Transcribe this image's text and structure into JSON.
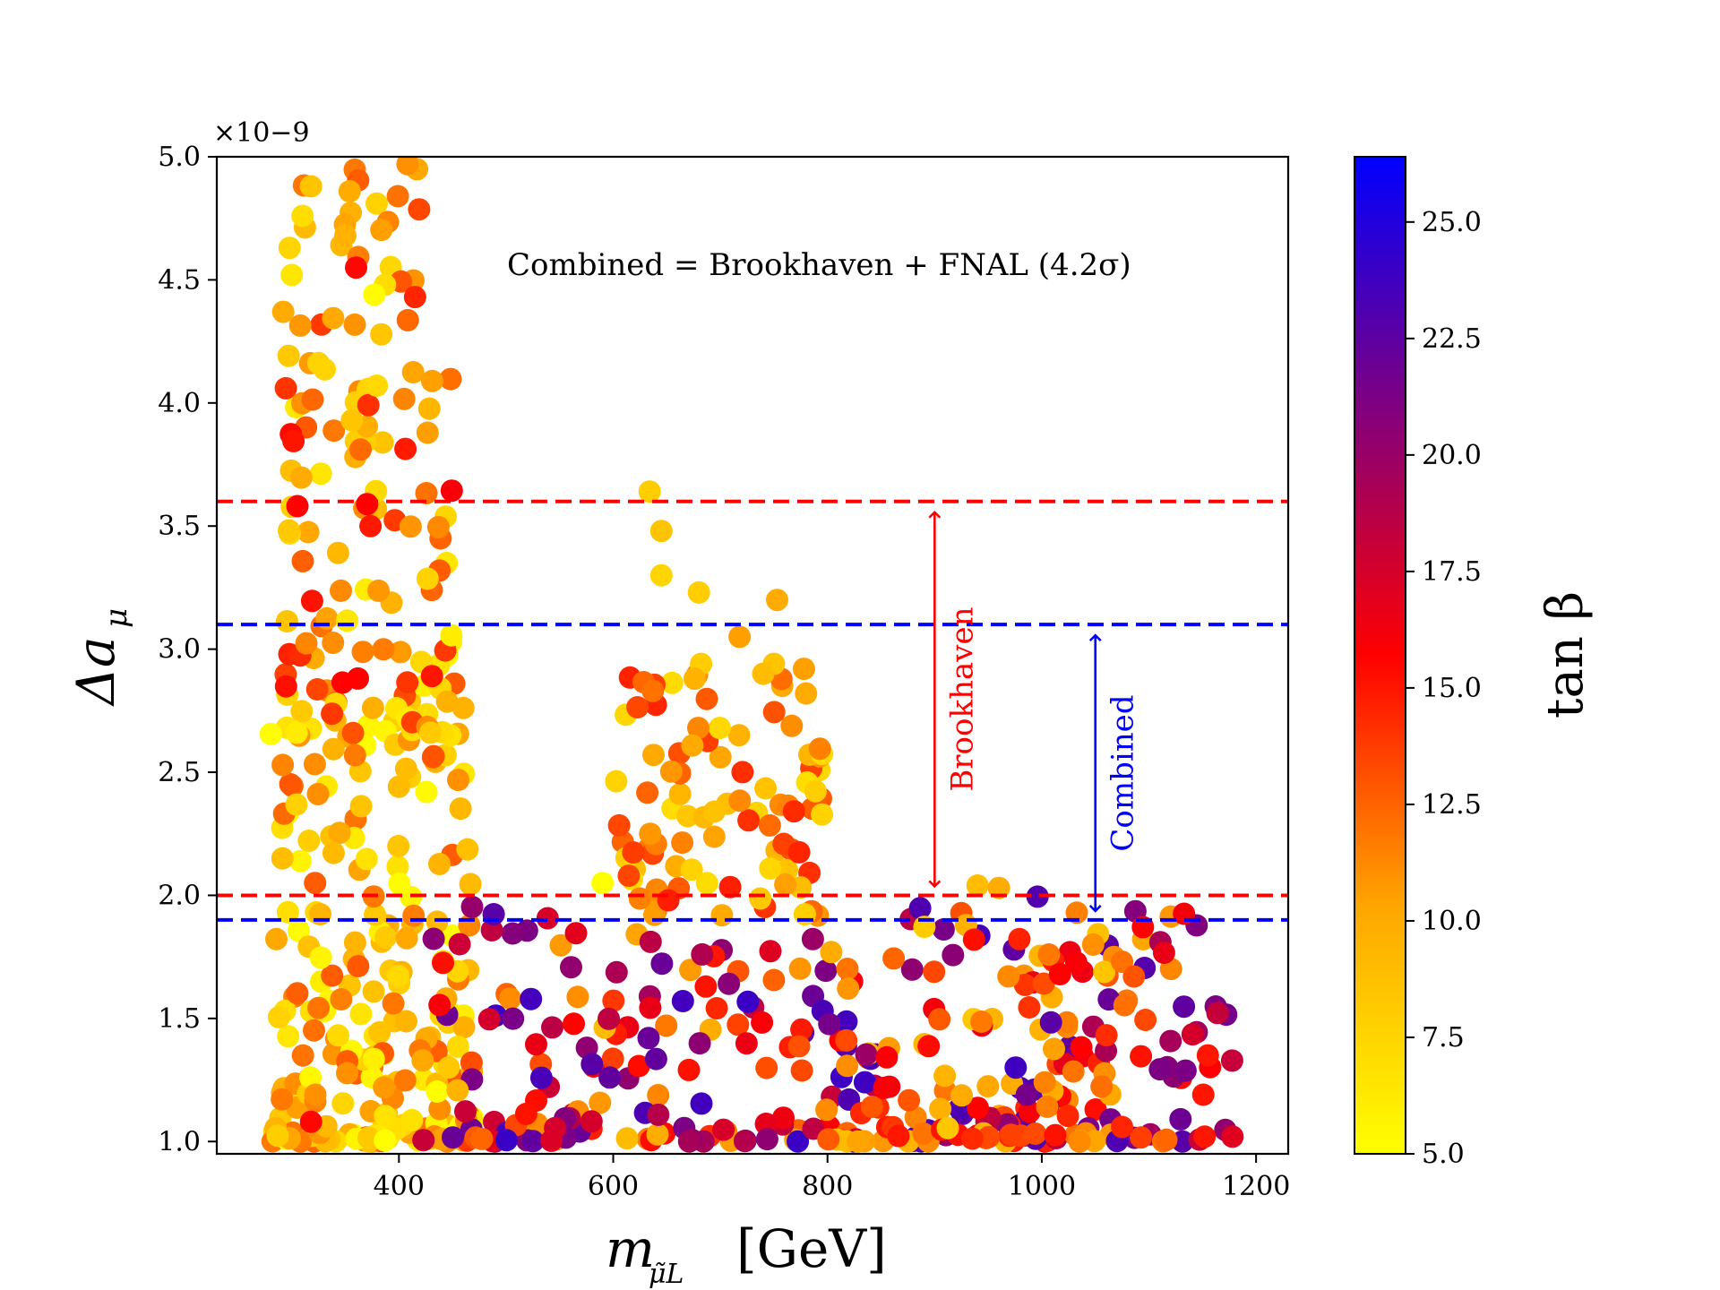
{
  "chart_data": {
    "type": "scatter",
    "title": "",
    "xlabel": {
      "main": "m",
      "sub": "μ̃L",
      "unit": "[GeV]"
    },
    "ylabel": {
      "main": "Δa",
      "sub": "μ"
    },
    "offset_label": "×10−9",
    "xlim": [
      230,
      1230
    ],
    "ylim": [
      0.95,
      5.0
    ],
    "x_ticks": [
      400,
      600,
      800,
      1000,
      1200
    ],
    "x_tick_labels": [
      "400",
      "600",
      "800",
      "1000",
      "1200"
    ],
    "y_ticks": [
      1.0,
      1.5,
      2.0,
      2.5,
      3.0,
      3.5,
      4.0,
      4.5,
      5.0
    ],
    "y_tick_labels": [
      "1.0",
      "1.5",
      "2.0",
      "2.5",
      "3.0",
      "3.5",
      "4.0",
      "4.5",
      "5.0"
    ],
    "colorbar": {
      "label": "tan β",
      "range": [
        5.0,
        26.4
      ],
      "ticks": [
        5.0,
        7.5,
        10.0,
        12.5,
        15.0,
        17.5,
        20.0,
        22.5,
        25.0
      ],
      "tick_labels": [
        "5.0",
        "7.5",
        "10.0",
        "12.5",
        "15.0",
        "17.5",
        "20.0",
        "22.5",
        "25.0"
      ],
      "colormap": [
        "#ffff00",
        "#ffa500",
        "#ff0000",
        "#800080",
        "#0000ff"
      ]
    },
    "reference_lines": [
      {
        "name": "brookhaven-upper",
        "y": 3.6,
        "color": "#ff0000"
      },
      {
        "name": "brookhaven-lower",
        "y": 2.0,
        "color": "#ff0000"
      },
      {
        "name": "combined-upper",
        "y": 3.1,
        "color": "#0000ff"
      },
      {
        "name": "combined-lower",
        "y": 1.9,
        "color": "#0000ff"
      }
    ],
    "range_arrows": [
      {
        "name": "brookhaven",
        "label": "Brookhaven",
        "x": 900,
        "y_low": 2.0,
        "y_high": 3.6,
        "color": "#ff0000"
      },
      {
        "name": "combined",
        "label": "Combined",
        "x": 1050,
        "y_low": 1.9,
        "y_high": 3.1,
        "color": "#0000ff"
      }
    ],
    "annotation": "Combined = Brookhaven + FNAL (4.2σ)",
    "point_seed": 20240611,
    "point_clusters": [
      {
        "n": 240,
        "x": [
          280,
          470
        ],
        "y": [
          1.0,
          3.0
        ],
        "tb": [
          5,
          13
        ],
        "shape": "decay"
      },
      {
        "n": 110,
        "x": [
          290,
          450
        ],
        "y": [
          2.5,
          4.2
        ],
        "tb": [
          6,
          16
        ],
        "shape": "uniform"
      },
      {
        "n": 22,
        "x": [
          300,
          420
        ],
        "y": [
          4.2,
          5.0
        ],
        "tb": [
          7,
          14
        ],
        "shape": "uniform"
      },
      {
        "n": 300,
        "x": [
          420,
          1180
        ],
        "y": [
          1.0,
          2.0
        ],
        "tb": [
          9,
          24
        ],
        "shape": "decay"
      },
      {
        "n": 90,
        "x": [
          600,
          800
        ],
        "y": [
          1.9,
          2.9
        ],
        "tb": [
          7,
          15
        ],
        "shape": "uniform"
      },
      {
        "n": 60,
        "x": [
          800,
          1100
        ],
        "y": [
          1.0,
          1.9
        ],
        "tb": [
          8,
          16
        ],
        "shape": "decay"
      }
    ],
    "points": [
      {
        "x": 408,
        "y": 4.97,
        "tb": 11.0
      },
      {
        "x": 318,
        "y": 4.88,
        "tb": 8.5
      },
      {
        "x": 354,
        "y": 4.86,
        "tb": 10.0
      },
      {
        "x": 399,
        "y": 4.84,
        "tb": 12.0
      },
      {
        "x": 310,
        "y": 4.76,
        "tb": 7.0
      },
      {
        "x": 350,
        "y": 4.68,
        "tb": 9.5
      },
      {
        "x": 298,
        "y": 4.63,
        "tb": 7.5
      },
      {
        "x": 360,
        "y": 4.55,
        "tb": 15.5
      },
      {
        "x": 300,
        "y": 4.52,
        "tb": 6.5
      },
      {
        "x": 387,
        "y": 4.48,
        "tb": 7.0
      },
      {
        "x": 377,
        "y": 4.44,
        "tb": 5.2
      },
      {
        "x": 415,
        "y": 4.43,
        "tb": 14.5
      },
      {
        "x": 292,
        "y": 4.37,
        "tb": 10.0
      },
      {
        "x": 634,
        "y": 3.64,
        "tb": 8.0
      },
      {
        "x": 645,
        "y": 3.48,
        "tb": 8.5
      },
      {
        "x": 645,
        "y": 3.3,
        "tb": 7.5
      },
      {
        "x": 680,
        "y": 3.23,
        "tb": 8.0
      },
      {
        "x": 753,
        "y": 3.2,
        "tb": 10.0
      },
      {
        "x": 718,
        "y": 3.05,
        "tb": 10.5
      },
      {
        "x": 682,
        "y": 2.94,
        "tb": 8.0
      },
      {
        "x": 750,
        "y": 2.94,
        "tb": 8.5
      },
      {
        "x": 778,
        "y": 2.92,
        "tb": 10.5
      },
      {
        "x": 740,
        "y": 2.9,
        "tb": 9.0
      },
      {
        "x": 676,
        "y": 2.88,
        "tb": 9.5
      },
      {
        "x": 780,
        "y": 2.82,
        "tb": 10.0
      },
      {
        "x": 637,
        "y": 2.83,
        "tb": 12.0
      },
      {
        "x": 590,
        "y": 2.05,
        "tb": 5.0
      },
      {
        "x": 940,
        "y": 2.04,
        "tb": 9.0
      },
      {
        "x": 960,
        "y": 2.03,
        "tb": 10.0
      },
      {
        "x": 1048,
        "y": 1.8,
        "tb": 11.0
      },
      {
        "x": 1075,
        "y": 1.73,
        "tb": 12.0
      },
      {
        "x": 1086,
        "y": 1.67,
        "tb": 13.0
      },
      {
        "x": 1155,
        "y": 1.35,
        "tb": 15.0
      },
      {
        "x": 1178,
        "y": 1.02,
        "tb": 17.0
      },
      {
        "x": 1152,
        "y": 1.02,
        "tb": 15.0
      },
      {
        "x": 318,
        "y": 1.08,
        "tb": 15.5
      },
      {
        "x": 322,
        "y": 1.19,
        "tb": 11.0
      },
      {
        "x": 633,
        "y": 1.42,
        "tb": 22.0
      }
    ]
  }
}
